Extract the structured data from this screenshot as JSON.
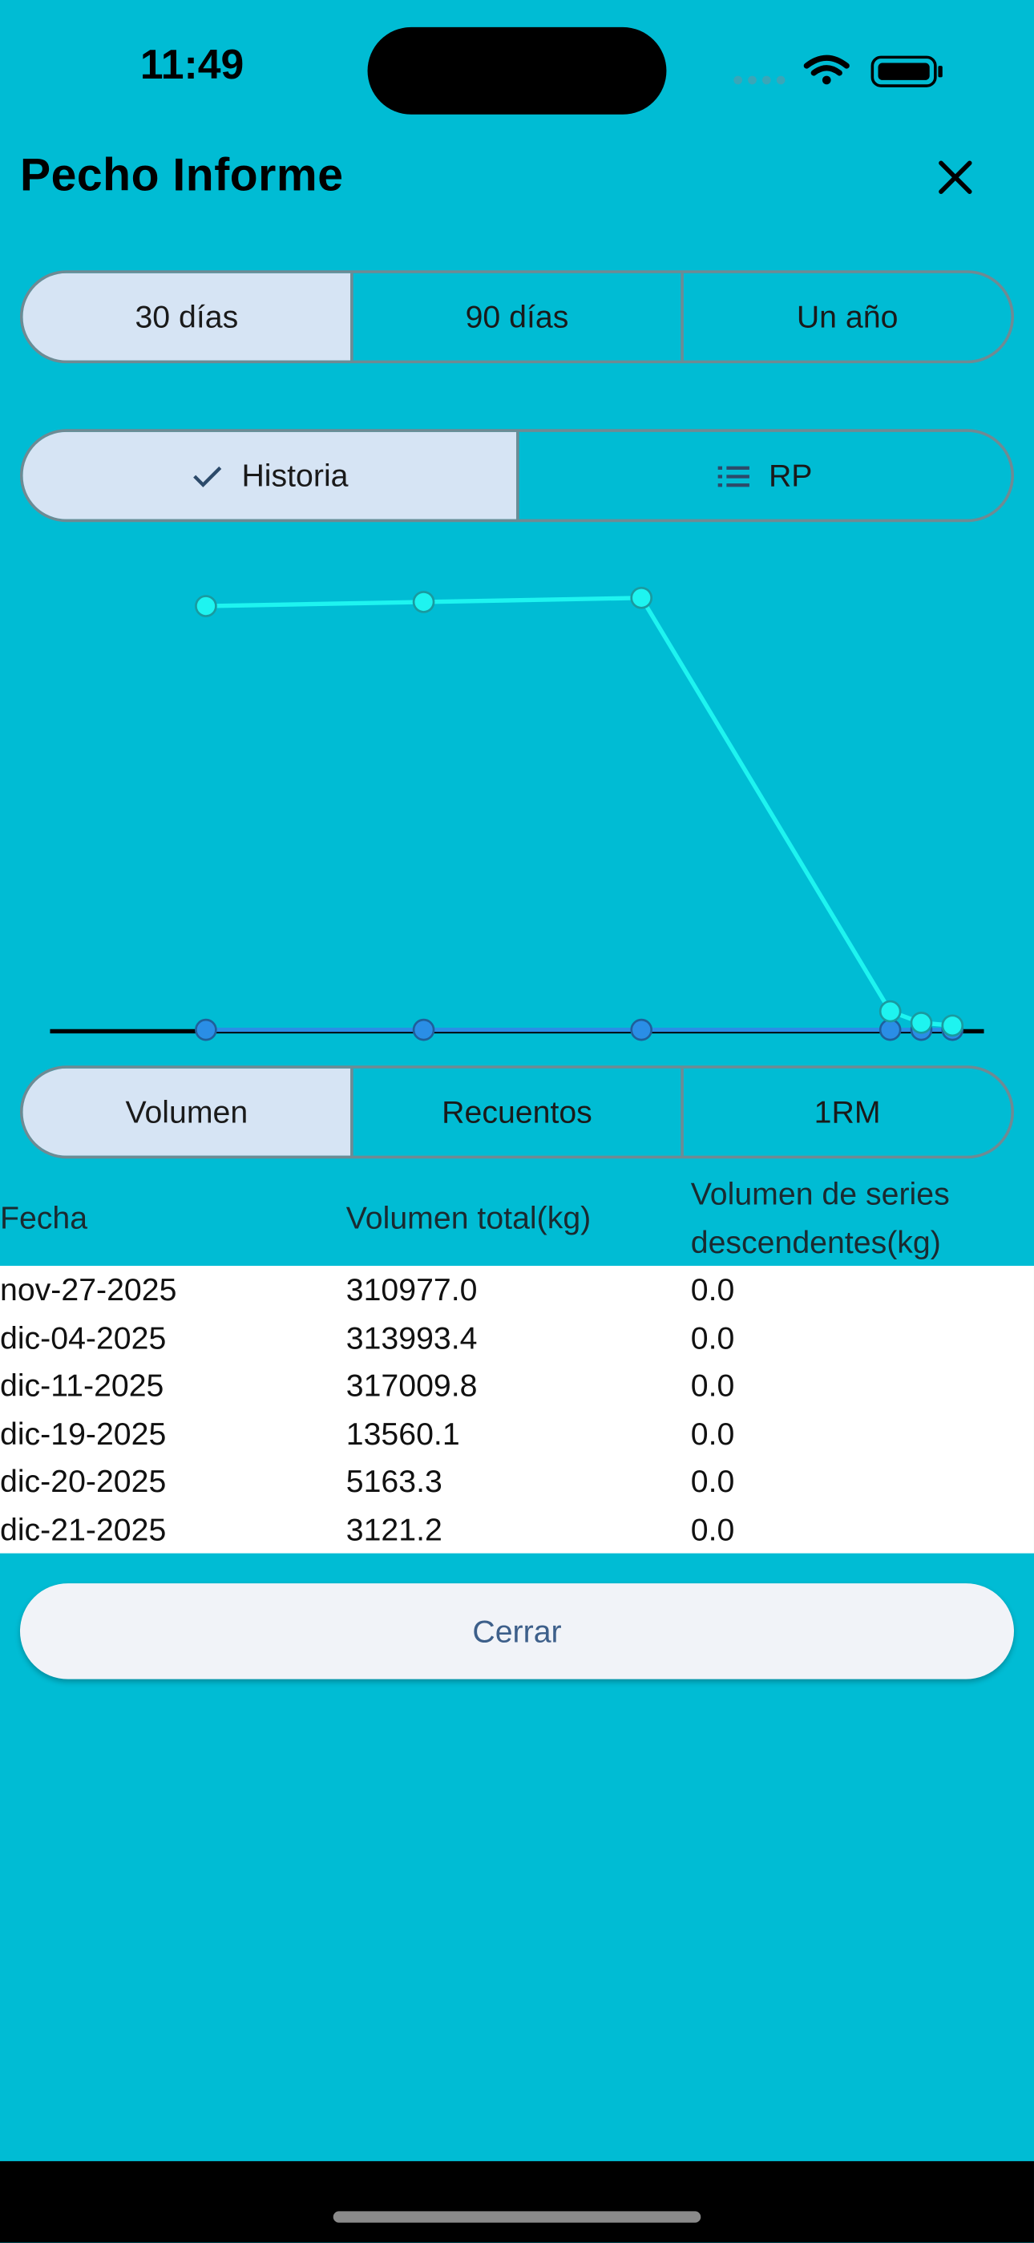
{
  "status_bar": {
    "time": "11:49"
  },
  "header": {
    "title": "Pecho Informe",
    "close_icon": "close-icon"
  },
  "range_tabs": [
    {
      "label": "30 días",
      "selected": true
    },
    {
      "label": "90 días",
      "selected": false
    },
    {
      "label": "Un año",
      "selected": false
    }
  ],
  "view_tabs": [
    {
      "label": "Historia",
      "icon": "check-icon",
      "selected": true
    },
    {
      "label": "RP",
      "icon": "list-icon",
      "selected": false
    }
  ],
  "metric_tabs": [
    {
      "label": "Volumen",
      "selected": true
    },
    {
      "label": "Recuentos",
      "selected": false
    },
    {
      "label": "1RM",
      "selected": false
    }
  ],
  "chart_data": {
    "type": "line",
    "x": [
      "2025-11-27",
      "2025-12-04",
      "2025-12-11",
      "2025-12-19",
      "2025-12-20",
      "2025-12-21"
    ],
    "series": [
      {
        "values": [
          310977.0,
          313993.4,
          317009.8,
          13560.1,
          5163.3,
          3121.2
        ],
        "color": "#1ef4f0"
      },
      {
        "values": [
          0.0,
          0.0,
          0.0,
          0.0,
          0.0,
          0.0
        ],
        "color": "#2a8ee6"
      }
    ],
    "ylim": [
      0,
      317009.8
    ],
    "grid": false,
    "axis_color": "#000000"
  },
  "table": {
    "headers": [
      "Fecha",
      "Volumen total(kg)",
      "Volumen de series descendentes(kg)"
    ],
    "rows": [
      [
        "nov-27-2025",
        "310977.0",
        "0.0"
      ],
      [
        "dic-04-2025",
        "313993.4",
        "0.0"
      ],
      [
        "dic-11-2025",
        "317009.8",
        "0.0"
      ],
      [
        "dic-19-2025",
        "13560.1",
        "0.0"
      ],
      [
        "dic-20-2025",
        "5163.3",
        "0.0"
      ],
      [
        "dic-21-2025",
        "3121.2",
        "0.0"
      ]
    ]
  },
  "close_button": {
    "label": "Cerrar"
  },
  "colors": {
    "background": "#00bcd4",
    "selected_segment": "#d6e4f4",
    "button_text": "#3d5f8a"
  }
}
